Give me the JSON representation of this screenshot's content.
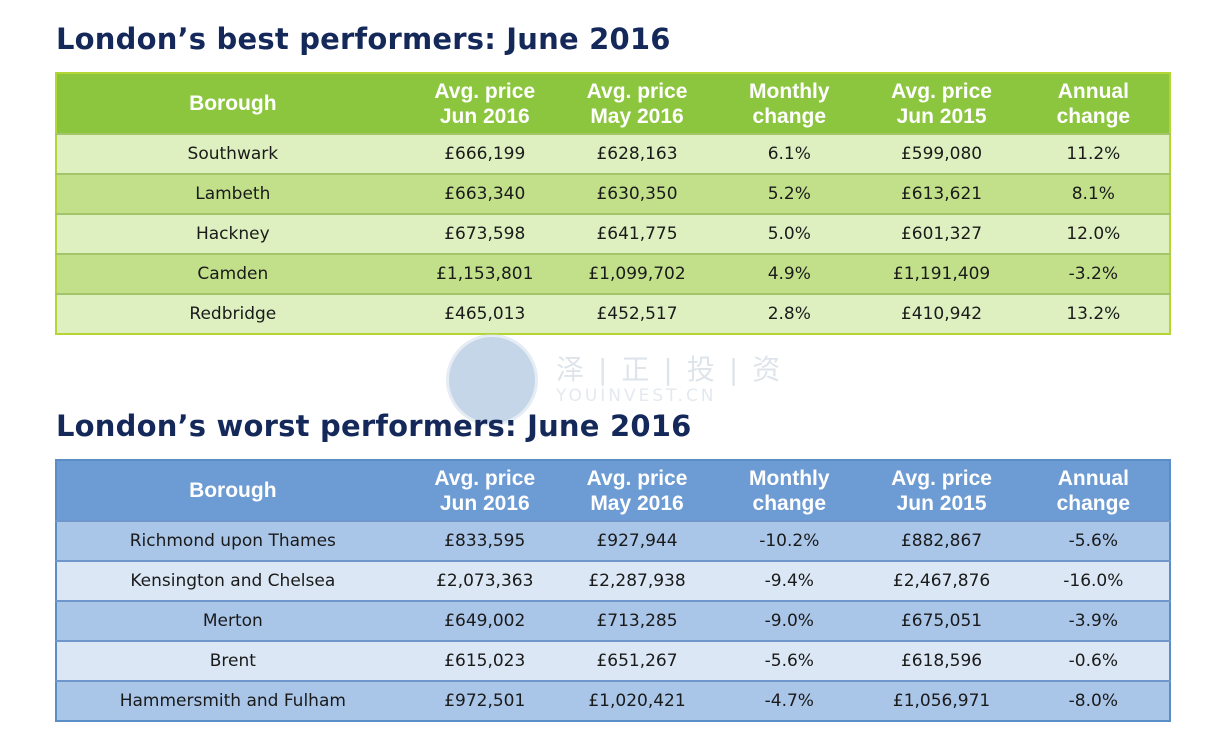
{
  "best": {
    "title": "London’s best performers: June 2016",
    "headers": [
      {
        "l1": "Borough",
        "l2": ""
      },
      {
        "l1": "Avg. price",
        "l2": "Jun 2016"
      },
      {
        "l1": "Avg. price",
        "l2": "May 2016"
      },
      {
        "l1": "Monthly",
        "l2": "change"
      },
      {
        "l1": "Avg. price",
        "l2": "Jun 2015"
      },
      {
        "l1": "Annual",
        "l2": "change"
      }
    ],
    "rows": [
      [
        "Southwark",
        "£666,199",
        "£628,163",
        "6.1%",
        "£599,080",
        "11.2%"
      ],
      [
        "Lambeth",
        "£663,340",
        "£630,350",
        "5.2%",
        "£613,621",
        "8.1%"
      ],
      [
        "Hackney",
        "£673,598",
        "£641,775",
        "5.0%",
        "£601,327",
        "12.0%"
      ],
      [
        "Camden",
        "£1,153,801",
        "£1,099,702",
        "4.9%",
        "£1,191,409",
        "-3.2%"
      ],
      [
        "Redbridge",
        "£465,013",
        "£452,517",
        "2.8%",
        "£410,942",
        "13.2%"
      ]
    ]
  },
  "worst": {
    "title": "London’s worst performers: June 2016",
    "headers": [
      {
        "l1": "Borough",
        "l2": ""
      },
      {
        "l1": "Avg. price",
        "l2": "Jun 2016"
      },
      {
        "l1": "Avg. price",
        "l2": "May 2016"
      },
      {
        "l1": "Monthly",
        "l2": "change"
      },
      {
        "l1": "Avg. price",
        "l2": "Jun 2015"
      },
      {
        "l1": "Annual",
        "l2": "change"
      }
    ],
    "rows": [
      [
        "Richmond upon Thames",
        "£833,595",
        "£927,944",
        "-10.2%",
        "£882,867",
        "-5.6%"
      ],
      [
        "Kensington and Chelsea",
        "£2,073,363",
        "£2,287,938",
        "-9.4%",
        "£2,467,876",
        "-16.0%"
      ],
      [
        "Merton",
        "£649,002",
        "£713,285",
        "-9.0%",
        "£675,051",
        "-3.9%"
      ],
      [
        "Brent",
        "£615,023",
        "£651,267",
        "-5.6%",
        "£618,596",
        "-0.6%"
      ],
      [
        "Hammersmith and Fulham",
        "£972,501",
        "£1,020,421",
        "-4.7%",
        "£1,056,971",
        "-8.0%"
      ]
    ]
  },
  "watermark": {
    "cn": "泽|正|投|资",
    "en": "YOUINVEST.CN"
  },
  "colors": {
    "title": "#14285a",
    "green_header": "#8cc63e",
    "green_row_light": "#def0c0",
    "green_row_dark": "#c2e08a",
    "blue_header": "#6d9bd3",
    "blue_row_dark": "#a9c5e8",
    "blue_row_light": "#dbe7f4"
  }
}
